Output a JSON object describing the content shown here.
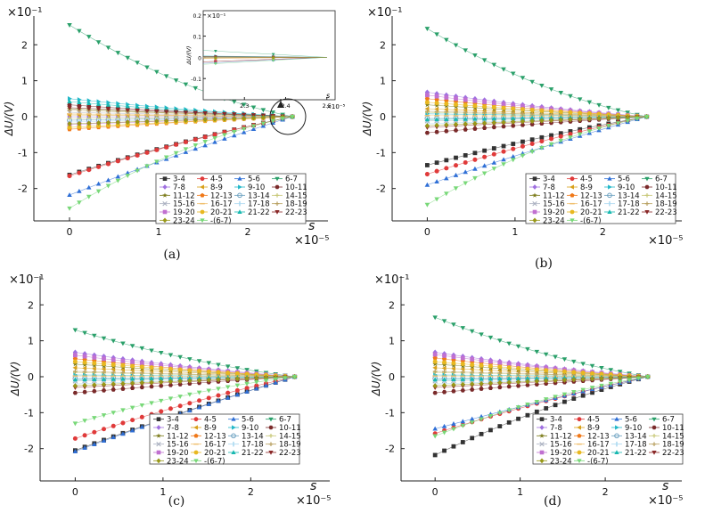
{
  "colors": {
    "3-4": "#333333",
    "4-5": "#e03a3a",
    "5-6": "#2f6fd6",
    "6-7": "#2aa06a",
    "7-8": "#a070e0",
    "8-9": "#d8a018",
    "9-10": "#22b8c8",
    "10-11": "#7a2a2a",
    "11-12": "#7a7a18",
    "12-13": "#f07818",
    "13-14": "#6aa0c0",
    "14-15": "#c8c878",
    "15-16": "#aab0c0",
    "16-17": "#f0c070",
    "17-18": "#a8d8f0",
    "18-19": "#b8a060",
    "19-20": "#c070d0",
    "20-21": "#e8b820",
    "21-22": "#18b8b0",
    "22-23": "#8a2828",
    "23-24": "#989818",
    "-(6-7)": "#78d878"
  },
  "chart_data": [
    {
      "id": "a",
      "type": "scatter",
      "caption": "(a)",
      "xlabel": "s",
      "ylabel": "ΔU/(V)",
      "x_multiplier": "×10⁻⁵",
      "y_multiplier": "×10⁻¹",
      "xlim": [
        -0.4,
        2.9
      ],
      "ylim": [
        -2.9,
        2.8
      ],
      "xticks": [
        "0",
        "1",
        "2"
      ],
      "yticks": [
        "-2",
        "-1",
        "0",
        "1",
        "2"
      ],
      "x_range": [
        0,
        2.5
      ],
      "points_per_series": 24,
      "legend_position": "bottom-right",
      "series": [
        {
          "name": "3-4",
          "y0": -1.62,
          "curvature": 0.2
        },
        {
          "name": "4-5",
          "y0": -1.65,
          "curvature": 0.2
        },
        {
          "name": "5-6",
          "y0": -2.18,
          "curvature": 0.1
        },
        {
          "name": "6-7",
          "y0": 2.55,
          "curvature": 0.5
        },
        {
          "name": "7-8",
          "y0": 0.0,
          "curvature": 0.0
        },
        {
          "name": "8-9",
          "y0": 0.05,
          "curvature": 0.0
        },
        {
          "name": "9-10",
          "y0": 0.5,
          "curvature": 0.3
        },
        {
          "name": "10-11",
          "y0": 0.33,
          "curvature": 0.3
        },
        {
          "name": "11-12",
          "y0": 0.22,
          "curvature": 0.2
        },
        {
          "name": "12-13",
          "y0": -0.35,
          "curvature": 0.2
        },
        {
          "name": "13-14",
          "y0": -0.1,
          "curvature": 0.0
        },
        {
          "name": "14-15",
          "y0": -0.05,
          "curvature": 0.0
        },
        {
          "name": "15-16",
          "y0": 0.12,
          "curvature": 0.0
        },
        {
          "name": "16-17",
          "y0": 0.08,
          "curvature": 0.0
        },
        {
          "name": "17-18",
          "y0": -0.15,
          "curvature": 0.0
        },
        {
          "name": "18-19",
          "y0": 0.18,
          "curvature": 0.0
        },
        {
          "name": "19-20",
          "y0": -0.22,
          "curvature": 0.0
        },
        {
          "name": "20-21",
          "y0": -0.3,
          "curvature": 0.1
        },
        {
          "name": "21-22",
          "y0": 0.42,
          "curvature": 0.3
        },
        {
          "name": "22-23",
          "y0": 0.25,
          "curvature": 0.0
        },
        {
          "name": "23-24",
          "y0": -0.2,
          "curvature": 0.0
        },
        {
          "name": "-(6-7)",
          "y0": -2.55,
          "curvature": 0.5
        }
      ],
      "inset": {
        "y_multiplier": "×10⁻¹",
        "x_multiplier": "×10⁻⁵",
        "xlabel": "s",
        "ylabel": "ΔU/(V)",
        "xlim": [
          2.2,
          2.52
        ],
        "ylim": [
          -0.2,
          0.22
        ],
        "xticks": [
          "2.3",
          "2.4",
          "2.5"
        ],
        "yticks": [
          "0.2",
          "0.1",
          "0",
          "-0.1"
        ]
      }
    },
    {
      "id": "b",
      "type": "scatter",
      "caption": "(b)",
      "xlabel": "",
      "ylabel": "ΔU/(V)",
      "x_multiplier": "×10⁻⁵",
      "y_multiplier": "×10⁻¹",
      "xlim": [
        -0.4,
        2.9
      ],
      "ylim": [
        -2.9,
        2.8
      ],
      "xticks": [
        "0",
        "1",
        "2"
      ],
      "yticks": [
        "-2",
        "-1",
        "0",
        "1",
        "2"
      ],
      "x_range": [
        0,
        2.5
      ],
      "points_per_series": 24,
      "legend_position": "bottom-right",
      "series": [
        {
          "name": "3-4",
          "y0": -1.35,
          "curvature": 0.2
        },
        {
          "name": "4-5",
          "y0": -1.6,
          "curvature": 0.2
        },
        {
          "name": "5-6",
          "y0": -1.9,
          "curvature": 0.1
        },
        {
          "name": "6-7",
          "y0": 2.45,
          "curvature": 0.5
        },
        {
          "name": "7-8",
          "y0": 0.68,
          "curvature": 0.3
        },
        {
          "name": "8-9",
          "y0": 0.22,
          "curvature": 0.1
        },
        {
          "name": "9-10",
          "y0": 0.08,
          "curvature": 0.0
        },
        {
          "name": "10-11",
          "y0": -0.45,
          "curvature": 0.2
        },
        {
          "name": "11-12",
          "y0": 0.33,
          "curvature": 0.2
        },
        {
          "name": "12-13",
          "y0": 0.5,
          "curvature": 0.3
        },
        {
          "name": "13-14",
          "y0": -0.05,
          "curvature": 0.0
        },
        {
          "name": "14-15",
          "y0": 0.12,
          "curvature": 0.0
        },
        {
          "name": "15-16",
          "y0": -0.12,
          "curvature": 0.0
        },
        {
          "name": "16-17",
          "y0": 0.03,
          "curvature": 0.0
        },
        {
          "name": "17-18",
          "y0": -0.2,
          "curvature": 0.0
        },
        {
          "name": "18-19",
          "y0": 0.15,
          "curvature": 0.0
        },
        {
          "name": "19-20",
          "y0": 0.6,
          "curvature": 0.3
        },
        {
          "name": "20-21",
          "y0": 0.4,
          "curvature": 0.2
        },
        {
          "name": "21-22",
          "y0": -0.08,
          "curvature": 0.0
        },
        {
          "name": "22-23",
          "y0": -0.3,
          "curvature": 0.1
        },
        {
          "name": "23-24",
          "y0": -0.25,
          "curvature": 0.1
        },
        {
          "name": "-(6-7)",
          "y0": -2.45,
          "curvature": 0.5
        }
      ]
    },
    {
      "id": "c",
      "type": "scatter",
      "caption": "(c)",
      "xlabel": "s",
      "ylabel": "ΔU/(V)",
      "x_multiplier": "×10⁻⁵",
      "y_multiplier": "×10⁻¹",
      "xlim": [
        -0.4,
        2.9
      ],
      "ylim": [
        -2.9,
        2.8
      ],
      "xticks": [
        "0",
        "1",
        "2"
      ],
      "yticks": [
        "-2",
        "-1",
        "0",
        "1",
        "2"
      ],
      "x_range": [
        0,
        2.5
      ],
      "points_per_series": 24,
      "legend_position": "bottom-right",
      "series": [
        {
          "name": "3-4",
          "y0": -2.05,
          "curvature": 0.1
        },
        {
          "name": "4-5",
          "y0": -1.72,
          "curvature": 0.2
        },
        {
          "name": "5-6",
          "y0": -2.08,
          "curvature": 0.1
        },
        {
          "name": "6-7",
          "y0": 1.3,
          "curvature": 0.4
        },
        {
          "name": "7-8",
          "y0": 0.68,
          "curvature": 0.3
        },
        {
          "name": "8-9",
          "y0": 0.25,
          "curvature": 0.1
        },
        {
          "name": "9-10",
          "y0": 0.05,
          "curvature": 0.0
        },
        {
          "name": "10-11",
          "y0": -0.45,
          "curvature": 0.2
        },
        {
          "name": "11-12",
          "y0": 0.35,
          "curvature": 0.2
        },
        {
          "name": "12-13",
          "y0": 0.5,
          "curvature": 0.3
        },
        {
          "name": "13-14",
          "y0": -0.05,
          "curvature": 0.0
        },
        {
          "name": "14-15",
          "y0": 0.12,
          "curvature": 0.0
        },
        {
          "name": "15-16",
          "y0": -0.12,
          "curvature": 0.0
        },
        {
          "name": "16-17",
          "y0": 0.02,
          "curvature": 0.0
        },
        {
          "name": "17-18",
          "y0": -0.2,
          "curvature": 0.0
        },
        {
          "name": "18-19",
          "y0": 0.15,
          "curvature": 0.0
        },
        {
          "name": "19-20",
          "y0": 0.6,
          "curvature": 0.3
        },
        {
          "name": "20-21",
          "y0": 0.42,
          "curvature": 0.2
        },
        {
          "name": "21-22",
          "y0": -0.08,
          "curvature": 0.0
        },
        {
          "name": "22-23",
          "y0": -0.3,
          "curvature": 0.1
        },
        {
          "name": "23-24",
          "y0": -0.25,
          "curvature": 0.1
        },
        {
          "name": "-(6-7)",
          "y0": -1.3,
          "curvature": 0.4
        }
      ]
    },
    {
      "id": "d",
      "type": "scatter",
      "caption": "(d)",
      "xlabel": "s",
      "ylabel": "ΔU/(V)",
      "x_multiplier": "×10⁻⁵",
      "y_multiplier": "×10⁻¹",
      "xlim": [
        -0.4,
        2.9
      ],
      "ylim": [
        -2.9,
        2.8
      ],
      "xticks": [
        "0",
        "1",
        "2"
      ],
      "yticks": [
        "-2",
        "-1",
        "0",
        "1",
        "2"
      ],
      "x_range": [
        0,
        2.5
      ],
      "points_per_series": 24,
      "legend_position": "bottom-right",
      "series": [
        {
          "name": "3-4",
          "y0": -2.18,
          "curvature": 0.3
        },
        {
          "name": "4-5",
          "y0": -1.58,
          "curvature": 0.2
        },
        {
          "name": "5-6",
          "y0": -1.45,
          "curvature": 0.1
        },
        {
          "name": "6-7",
          "y0": 1.65,
          "curvature": 0.4
        },
        {
          "name": "7-8",
          "y0": 0.68,
          "curvature": 0.3
        },
        {
          "name": "8-9",
          "y0": 0.25,
          "curvature": 0.1
        },
        {
          "name": "9-10",
          "y0": 0.05,
          "curvature": 0.0
        },
        {
          "name": "10-11",
          "y0": -0.45,
          "curvature": 0.2
        },
        {
          "name": "11-12",
          "y0": 0.35,
          "curvature": 0.2
        },
        {
          "name": "12-13",
          "y0": 0.52,
          "curvature": 0.3
        },
        {
          "name": "13-14",
          "y0": -0.05,
          "curvature": 0.0
        },
        {
          "name": "14-15",
          "y0": 0.12,
          "curvature": 0.0
        },
        {
          "name": "15-16",
          "y0": -0.12,
          "curvature": 0.0
        },
        {
          "name": "16-17",
          "y0": 0.02,
          "curvature": 0.0
        },
        {
          "name": "17-18",
          "y0": -0.2,
          "curvature": 0.0
        },
        {
          "name": "18-19",
          "y0": 0.15,
          "curvature": 0.0
        },
        {
          "name": "19-20",
          "y0": 0.62,
          "curvature": 0.3
        },
        {
          "name": "20-21",
          "y0": 0.42,
          "curvature": 0.2
        },
        {
          "name": "21-22",
          "y0": -0.08,
          "curvature": 0.0
        },
        {
          "name": "22-23",
          "y0": -0.3,
          "curvature": 0.1
        },
        {
          "name": "23-24",
          "y0": -0.25,
          "curvature": 0.1
        },
        {
          "name": "-(6-7)",
          "y0": -1.65,
          "curvature": 0.4
        }
      ]
    }
  ]
}
